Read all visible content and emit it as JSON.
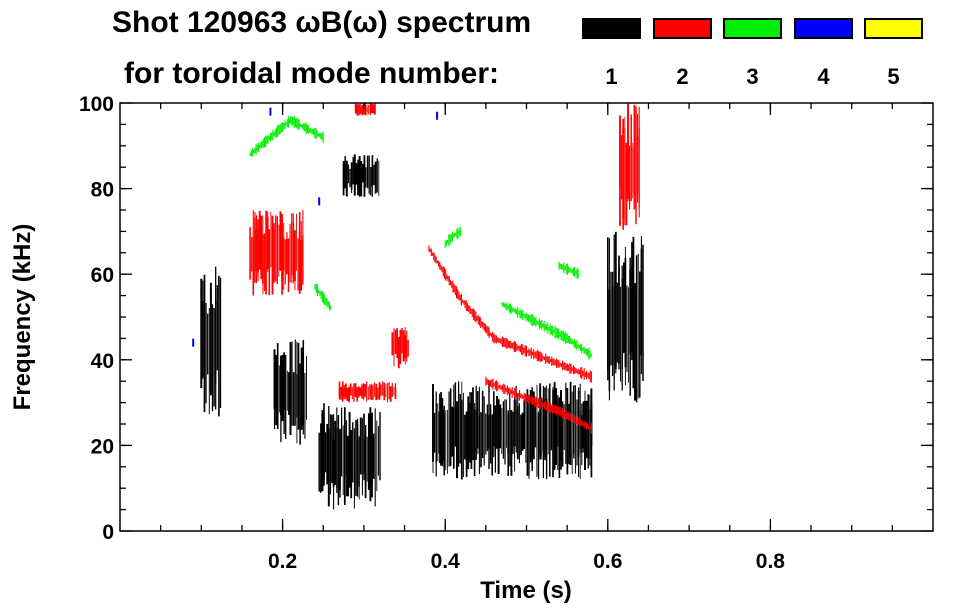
{
  "chart_data": {
    "type": "heatmap",
    "title": "Shot 120963 ωB(ω) spectrum",
    "subtitle": "for toroidal mode number:",
    "xlabel": "Time (s)",
    "ylabel": "Frequency (kHz)",
    "xlim": [
      0.0,
      1.0
    ],
    "ylim": [
      0,
      100
    ],
    "xticks": [
      0.2,
      0.4,
      0.6,
      0.8
    ],
    "xtick_labels": [
      "0.2",
      "0.4",
      "0.6",
      "0.8"
    ],
    "yticks": [
      0,
      20,
      40,
      60,
      80,
      100
    ],
    "ytick_labels": [
      "0",
      "20",
      "40",
      "60",
      "80",
      "100"
    ],
    "legend": [
      {
        "label": "1",
        "color": "#000000"
      },
      {
        "label": "2",
        "color": "#ff0000"
      },
      {
        "label": "3",
        "color": "#00ee00"
      },
      {
        "label": "4",
        "color": "#0000ff"
      },
      {
        "label": "5",
        "color": "#ffff00"
      }
    ],
    "regions": [
      {
        "mode": 1,
        "t": [
          0.1,
          0.125
        ],
        "f": [
          25,
          63
        ]
      },
      {
        "mode": 1,
        "t": [
          0.245,
          0.32
        ],
        "f": [
          5,
          30
        ]
      },
      {
        "mode": 1,
        "t": [
          0.275,
          0.32
        ],
        "f": [
          78,
          88
        ]
      },
      {
        "mode": 1,
        "t": [
          0.385,
          0.58
        ],
        "f": [
          12,
          35
        ]
      },
      {
        "mode": 1,
        "t": [
          0.6,
          0.645
        ],
        "f": [
          30,
          70
        ]
      },
      {
        "mode": 1,
        "t": [
          0.19,
          0.23
        ],
        "f": [
          20,
          45
        ]
      },
      {
        "mode": 2,
        "t": [
          0.16,
          0.225
        ],
        "f": [
          55,
          75
        ]
      },
      {
        "mode": 2,
        "t": [
          0.27,
          0.34
        ],
        "f": [
          30,
          35
        ]
      },
      {
        "mode": 2,
        "t": [
          0.335,
          0.355
        ],
        "f": [
          38,
          48
        ]
      },
      {
        "mode": 2,
        "t": [
          0.29,
          0.315
        ],
        "f": [
          97,
          100
        ]
      },
      {
        "mode": 2,
        "t": [
          0.615,
          0.64
        ],
        "f": [
          70,
          100
        ]
      }
    ],
    "ridges": [
      {
        "mode": 2,
        "t": [
          0.38,
          0.42,
          0.46,
          0.5,
          0.54,
          0.58
        ],
        "f": [
          66,
          54,
          45,
          42,
          39,
          36
        ]
      },
      {
        "mode": 2,
        "t": [
          0.45,
          0.5,
          0.54,
          0.58
        ],
        "f": [
          35,
          31,
          28,
          24
        ]
      },
      {
        "mode": 3,
        "t": [
          0.47,
          0.51,
          0.55,
          0.58
        ],
        "f": [
          53,
          49,
          45,
          41
        ]
      },
      {
        "mode": 3,
        "t": [
          0.16,
          0.21,
          0.25
        ],
        "f": [
          88,
          96,
          92
        ]
      },
      {
        "mode": 3,
        "t": [
          0.4,
          0.41,
          0.42
        ],
        "f": [
          67,
          69,
          70
        ]
      },
      {
        "mode": 3,
        "t": [
          0.54,
          0.565
        ],
        "f": [
          62,
          60
        ]
      },
      {
        "mode": 3,
        "t": [
          0.24,
          0.26
        ],
        "f": [
          57,
          52
        ]
      }
    ],
    "points": [
      {
        "mode": 4,
        "t": 0.09,
        "f": 44
      },
      {
        "mode": 4,
        "t": 0.185,
        "f": 98
      },
      {
        "mode": 4,
        "t": 0.245,
        "f": 77
      },
      {
        "mode": 4,
        "t": 0.39,
        "f": 97
      }
    ]
  }
}
